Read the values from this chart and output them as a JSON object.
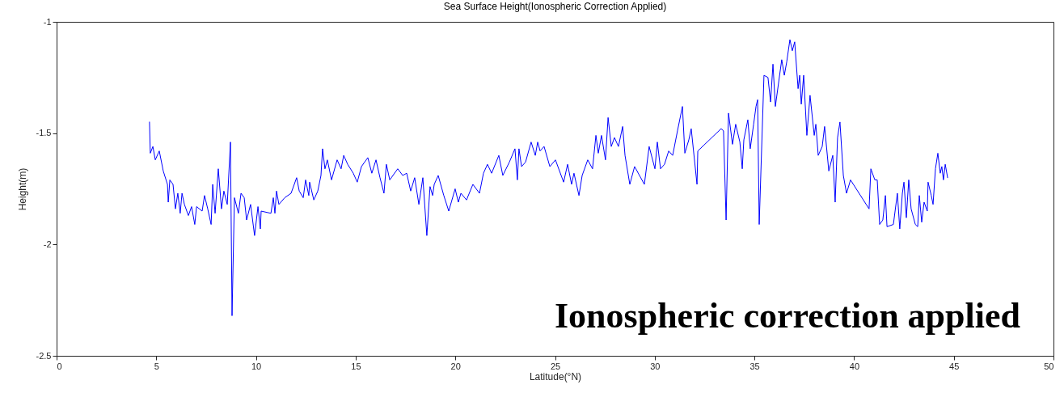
{
  "chart_data": {
    "type": "line",
    "title": "Sea Surface Height(Ionospheric Correction Applied)",
    "xlabel": "Latitude(°N)",
    "ylabel": "Height(m)",
    "annotations": [
      "Ionospheric correction applied"
    ],
    "x": [
      4.66,
      4.7,
      4.83,
      4.95,
      5.15,
      5.35,
      5.56,
      5.6,
      5.68,
      5.84,
      5.96,
      6.08,
      6.2,
      6.29,
      6.41,
      6.61,
      6.77,
      6.93,
      7.02,
      7.3,
      7.42,
      7.58,
      7.75,
      7.83,
      7.95,
      8.11,
      8.27,
      8.39,
      8.56,
      8.72,
      8.8,
      8.92,
      9.12,
      9.25,
      9.41,
      9.53,
      9.73,
      9.93,
      10.1,
      10.22,
      10.26,
      10.75,
      10.87,
      10.95,
      11.03,
      11.15,
      11.44,
      11.76,
      12.04,
      12.17,
      12.37,
      12.49,
      12.65,
      12.69,
      12.9,
      13.1,
      13.26,
      13.34,
      13.46,
      13.58,
      13.79,
      14.07,
      14.27,
      14.4,
      14.6,
      14.88,
      15.08,
      15.29,
      15.61,
      15.81,
      16.02,
      16.22,
      16.42,
      16.54,
      16.71,
      17.11,
      17.36,
      17.56,
      17.76,
      17.96,
      18.17,
      18.37,
      18.57,
      18.73,
      18.86,
      18.94,
      19.14,
      19.42,
      19.67,
      19.99,
      20.15,
      20.28,
      20.56,
      20.88,
      21.21,
      21.41,
      21.61,
      21.82,
      22.18,
      22.38,
      22.71,
      22.99,
      23.11,
      23.19,
      23.32,
      23.52,
      23.8,
      24.01,
      24.13,
      24.25,
      24.45,
      24.74,
      25.02,
      25.43,
      25.63,
      25.83,
      25.95,
      26.2,
      26.36,
      26.64,
      26.88,
      27.05,
      27.17,
      27.33,
      27.53,
      27.66,
      27.82,
      27.98,
      28.18,
      28.39,
      28.51,
      28.75,
      28.99,
      29.48,
      29.72,
      30.01,
      30.13,
      30.29,
      30.49,
      30.7,
      30.9,
      31.14,
      31.39,
      31.51,
      31.71,
      31.83,
      32.12,
      32.16,
      33.33,
      33.45,
      33.58,
      33.7,
      33.9,
      34.06,
      34.27,
      34.39,
      34.47,
      34.67,
      34.79,
      34.96,
      35.08,
      35.16,
      35.24,
      35.48,
      35.68,
      35.81,
      35.93,
      36.05,
      36.37,
      36.5,
      36.62,
      36.78,
      36.9,
      37.02,
      37.19,
      37.27,
      37.35,
      37.47,
      37.63,
      37.79,
      38.0,
      38.08,
      38.2,
      38.4,
      38.52,
      38.73,
      38.93,
      39.05,
      39.17,
      39.29,
      39.46,
      39.62,
      39.82,
      40.75,
      40.84,
      41.04,
      41.16,
      41.28,
      41.44,
      41.57,
      41.65,
      41.97,
      42.17,
      42.29,
      42.42,
      42.5,
      42.62,
      42.74,
      42.86,
      43.07,
      43.19,
      43.27,
      43.39,
      43.51,
      43.67,
      43.71,
      43.87,
      43.96,
      44.08,
      44.2,
      44.32,
      44.4,
      44.48,
      44.57,
      44.69
    ],
    "series": [
      {
        "color": "#0000ff",
        "values": [
          -1.45,
          -1.59,
          -1.56,
          -1.62,
          -1.58,
          -1.67,
          -1.73,
          -1.81,
          -1.71,
          -1.73,
          -1.84,
          -1.77,
          -1.86,
          -1.77,
          -1.82,
          -1.87,
          -1.83,
          -1.91,
          -1.83,
          -1.85,
          -1.78,
          -1.84,
          -1.91,
          -1.73,
          -1.86,
          -1.66,
          -1.84,
          -1.76,
          -1.82,
          -1.54,
          -2.32,
          -1.79,
          -1.86,
          -1.77,
          -1.79,
          -1.89,
          -1.82,
          -1.96,
          -1.83,
          -1.93,
          -1.85,
          -1.86,
          -1.79,
          -1.86,
          -1.76,
          -1.82,
          -1.79,
          -1.77,
          -1.7,
          -1.76,
          -1.79,
          -1.71,
          -1.78,
          -1.72,
          -1.8,
          -1.76,
          -1.69,
          -1.57,
          -1.66,
          -1.62,
          -1.71,
          -1.62,
          -1.66,
          -1.6,
          -1.64,
          -1.68,
          -1.72,
          -1.65,
          -1.61,
          -1.68,
          -1.62,
          -1.7,
          -1.77,
          -1.64,
          -1.71,
          -1.66,
          -1.69,
          -1.68,
          -1.76,
          -1.7,
          -1.82,
          -1.7,
          -1.96,
          -1.74,
          -1.78,
          -1.73,
          -1.69,
          -1.78,
          -1.85,
          -1.75,
          -1.81,
          -1.77,
          -1.8,
          -1.73,
          -1.77,
          -1.68,
          -1.64,
          -1.68,
          -1.6,
          -1.69,
          -1.63,
          -1.57,
          -1.71,
          -1.57,
          -1.65,
          -1.63,
          -1.54,
          -1.6,
          -1.54,
          -1.58,
          -1.56,
          -1.65,
          -1.62,
          -1.72,
          -1.64,
          -1.73,
          -1.68,
          -1.78,
          -1.69,
          -1.62,
          -1.66,
          -1.51,
          -1.59,
          -1.51,
          -1.62,
          -1.43,
          -1.56,
          -1.52,
          -1.56,
          -1.47,
          -1.6,
          -1.73,
          -1.65,
          -1.73,
          -1.56,
          -1.66,
          -1.54,
          -1.66,
          -1.64,
          -1.58,
          -1.6,
          -1.49,
          -1.38,
          -1.59,
          -1.53,
          -1.48,
          -1.73,
          -1.58,
          -1.48,
          -1.49,
          -1.89,
          -1.41,
          -1.55,
          -1.46,
          -1.54,
          -1.66,
          -1.53,
          -1.44,
          -1.57,
          -1.46,
          -1.38,
          -1.35,
          -1.91,
          -1.24,
          -1.25,
          -1.36,
          -1.19,
          -1.38,
          -1.17,
          -1.24,
          -1.18,
          -1.08,
          -1.13,
          -1.09,
          -1.3,
          -1.24,
          -1.37,
          -1.24,
          -1.51,
          -1.33,
          -1.51,
          -1.46,
          -1.6,
          -1.56,
          -1.47,
          -1.67,
          -1.6,
          -1.81,
          -1.52,
          -1.45,
          -1.69,
          -1.77,
          -1.71,
          -1.84,
          -1.66,
          -1.71,
          -1.71,
          -1.91,
          -1.89,
          -1.78,
          -1.92,
          -1.91,
          -1.77,
          -1.93,
          -1.77,
          -1.72,
          -1.88,
          -1.71,
          -1.84,
          -1.91,
          -1.92,
          -1.78,
          -1.9,
          -1.81,
          -1.85,
          -1.72,
          -1.78,
          -1.82,
          -1.66,
          -1.59,
          -1.68,
          -1.65,
          -1.71,
          -1.64,
          -1.7
        ]
      }
    ],
    "xlim": [
      0,
      50
    ],
    "xticks": [
      0,
      5,
      10,
      15,
      20,
      25,
      30,
      35,
      40,
      45,
      50
    ],
    "ylim": [
      -2.5,
      -1
    ],
    "yticks": [
      -2.5,
      -2,
      -1.5,
      -1
    ],
    "grid": false,
    "marker": "none",
    "line_style": "solid"
  }
}
